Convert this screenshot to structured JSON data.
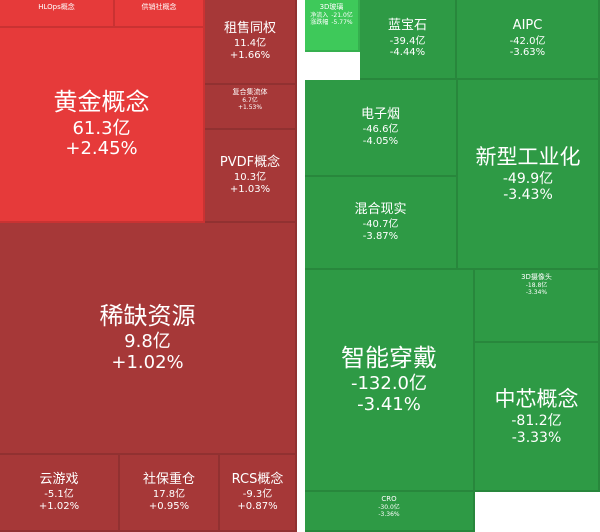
{
  "chart_data": {
    "type": "treemap",
    "colors": {
      "gain_strong": "#e63a3a",
      "gain": "#a63838",
      "loss_light": "#3ec95a",
      "loss": "#2e9a45"
    },
    "gainers": [
      {
        "name": "HLOps概念",
        "net_inflow": "",
        "change": "",
        "size": "tiny",
        "color": "gain_strong"
      },
      {
        "name": "供销社概念",
        "net_inflow": "",
        "change": "",
        "size": "tiny",
        "color": "gain_strong"
      },
      {
        "name": "租售同权",
        "net_inflow": "11.4亿",
        "change": "+1.66%",
        "size": "small",
        "color": "gain"
      },
      {
        "name": "黄金概念",
        "net_inflow": "61.3亿",
        "change": "+2.45%",
        "size": "large",
        "color": "gain_strong"
      },
      {
        "name": "复合集流体",
        "net_inflow": "6.7亿",
        "change": "+1.53%",
        "size": "tiny",
        "color": "gain"
      },
      {
        "name": "PVDF概念",
        "net_inflow": "10.3亿",
        "change": "+1.03%",
        "size": "small",
        "color": "gain"
      },
      {
        "name": "稀缺资源",
        "net_inflow": "9.8亿",
        "change": "+1.02%",
        "size": "large",
        "color": "gain"
      },
      {
        "name": "云游戏",
        "net_inflow": "-5.1亿",
        "change": "+1.02%",
        "size": "small",
        "color": "gain"
      },
      {
        "name": "社保重仓",
        "net_inflow": "17.8亿",
        "change": "+0.95%",
        "size": "small",
        "color": "gain"
      },
      {
        "name": "RCS概念",
        "net_inflow": "-9.3亿",
        "change": "+0.87%",
        "size": "small",
        "color": "gain"
      }
    ],
    "losers": [
      {
        "name": "3D玻璃",
        "net_inflow_label": "净流入",
        "net_inflow": "-21.0亿",
        "change_label": "涨跌幅",
        "change": "-5.77%",
        "size": "tiny",
        "color": "loss_light"
      },
      {
        "name": "蓝宝石",
        "net_inflow": "-39.4亿",
        "change": "-4.44%",
        "size": "small",
        "color": "loss"
      },
      {
        "name": "AIPC",
        "net_inflow": "-42.0亿",
        "change": "-3.63%",
        "size": "small",
        "color": "loss"
      },
      {
        "name": "电子烟",
        "net_inflow": "-46.6亿",
        "change": "-4.05%",
        "size": "small",
        "color": "loss"
      },
      {
        "name": "新型工业化",
        "net_inflow": "-49.9亿",
        "change": "-3.43%",
        "size": "medium",
        "color": "loss"
      },
      {
        "name": "混合现实",
        "net_inflow": "-40.7亿",
        "change": "-3.87%",
        "size": "small",
        "color": "loss"
      },
      {
        "name": "3D摄像头",
        "net_inflow": "-18.8亿",
        "change": "-3.34%",
        "size": "tiny",
        "color": "loss"
      },
      {
        "name": "智能穿戴",
        "net_inflow": "-132.0亿",
        "change": "-3.41%",
        "size": "large",
        "color": "loss"
      },
      {
        "name": "中芯概念",
        "net_inflow": "-81.2亿",
        "change": "-3.33%",
        "size": "medium",
        "color": "loss"
      },
      {
        "name": "CRO",
        "net_inflow": "-30.0亿",
        "change": "-3.36%",
        "size": "tiny",
        "color": "loss"
      }
    ]
  }
}
